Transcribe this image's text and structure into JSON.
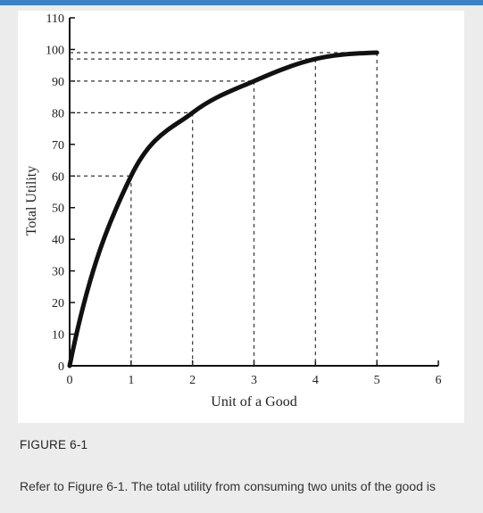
{
  "figure": {
    "caption": "FIGURE 6-1",
    "question": "Refer to Figure 6-1. The total utility from consuming two units of the good is"
  },
  "chart_data": {
    "type": "line",
    "title": "",
    "xlabel": "Unit of a Good",
    "ylabel": "Total Utility",
    "xlim": [
      0,
      6
    ],
    "ylim": [
      0,
      110
    ],
    "x_ticks": [
      0,
      1,
      2,
      3,
      4,
      5,
      6
    ],
    "y_ticks": [
      0,
      10,
      20,
      30,
      40,
      50,
      60,
      70,
      80,
      90,
      100,
      110
    ],
    "grid": false,
    "series": [
      {
        "x": [
          0,
          1,
          2,
          3,
          4,
          5
        ],
        "values": [
          0,
          60,
          80,
          90,
          97,
          99
        ]
      }
    ],
    "guide_lines": "dashed lines from each point to both axes",
    "line_color": "#111111"
  }
}
